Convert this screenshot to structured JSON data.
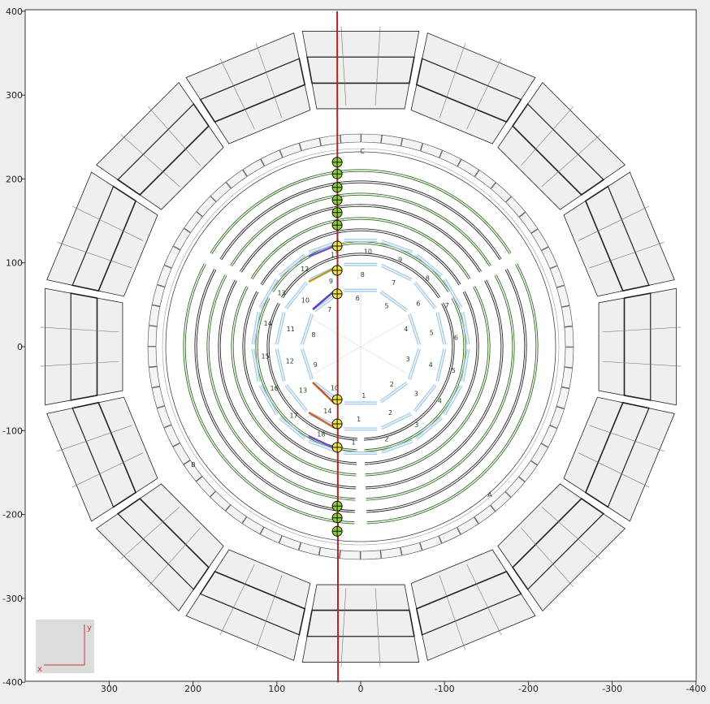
{
  "title": "",
  "axes": {
    "x_ticks": [
      "300",
      "200",
      "100",
      "0",
      "-100",
      "-200",
      "-300",
      "-400"
    ],
    "y_ticks": [
      "400",
      "300",
      "200",
      "100",
      "0",
      "-100",
      "-200",
      "-300",
      "-400"
    ],
    "xlim": [
      400,
      -400
    ],
    "ylim": [
      -400,
      400
    ]
  },
  "sector_labels": {
    "a": "A",
    "b": "B",
    "c": "C"
  },
  "legend": {
    "x": "x",
    "y": "y"
  },
  "colors": {
    "background": "#eeeeee",
    "plot_bg": "#ffffff",
    "track_line": "#b22222",
    "green_hit": "#8fce3a",
    "yellow_hit": "#f2e24a",
    "pixel_layer": "#a8cce8",
    "strip_layer": "#2d6b1f",
    "module_fill": "#efefef"
  },
  "chart_data": {
    "type": "scatter",
    "title": "",
    "xlabel": "",
    "ylabel": "",
    "xlim": [
      400,
      -400
    ],
    "ylim": [
      -400,
      400
    ],
    "grid": false,
    "pixel_sector_labels": {
      "inner": [
        "1",
        "2",
        "3",
        "4",
        "5",
        "6",
        "7",
        "8",
        "9",
        "10"
      ],
      "ring2": [
        "1",
        "2",
        "3",
        "4",
        "5",
        "6",
        "7",
        "8",
        "9",
        "10",
        "11",
        "12",
        "13",
        "14"
      ],
      "ring3": [
        "1",
        "2",
        "3",
        "4",
        "5",
        "6",
        "7",
        "8",
        "9",
        "10",
        "11",
        "12",
        "13",
        "14",
        "15",
        "16",
        "17",
        "18"
      ]
    },
    "series": [
      {
        "x": [
          28,
          28,
          28,
          28,
          28,
          28
        ],
        "y": [
          220,
          206,
          190,
          175,
          160,
          145
        ]
      },
      {
        "x": [
          28,
          28,
          28
        ],
        "y": [
          120,
          91,
          63
        ]
      },
      {
        "x": [
          28,
          28,
          28
        ],
        "y": [
          -63,
          -92,
          -120
        ]
      },
      {
        "x": [
          28,
          28,
          28
        ],
        "y": [
          -190,
          -204,
          -220
        ]
      }
    ],
    "track": {
      "x": [
        28,
        27
      ],
      "y": [
        400,
        -400
      ]
    }
  }
}
